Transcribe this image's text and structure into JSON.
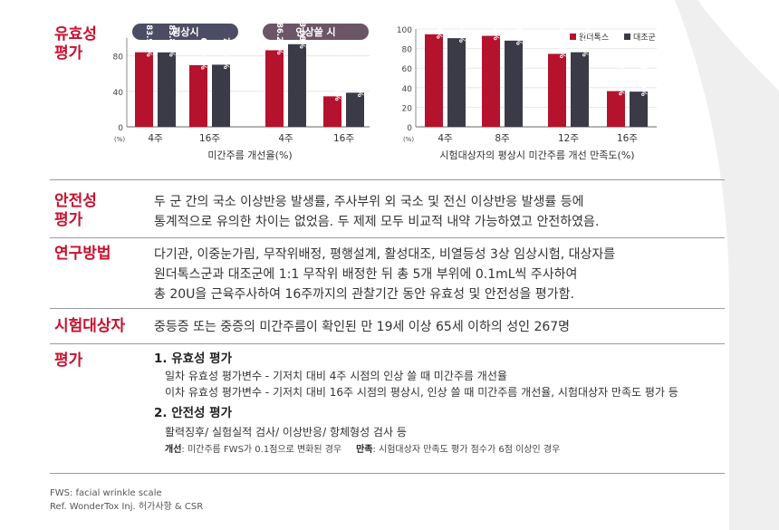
{
  "colors": {
    "accent": "#c8102e",
    "bar_red": "#b5122e",
    "bar_dark": "#3b3b48",
    "pill_dark": "#4a4d63",
    "pill_purple": "#6b5566",
    "bg_shape": "#f0eff0"
  },
  "efficacy": {
    "label_lines": [
      "유효성",
      "평가"
    ]
  },
  "chart1": {
    "pills": [
      "평상시",
      "인상쓸 시"
    ],
    "y_ticks": [
      "80",
      "40",
      "0"
    ],
    "unit": "(%)",
    "xlabel": "미간주름 개선율(%)"
  },
  "chart2": {
    "y_ticks": [
      "100",
      "80",
      "60",
      "40",
      "20",
      "0"
    ],
    "unit": "(%)",
    "xlabel": "시험대상자의 평상시 미간주름 개선 만족도(%)",
    "legend": [
      "원더톡스",
      "대조군"
    ]
  },
  "chart_data": [
    {
      "type": "bar",
      "title": "",
      "xlabel": "미간주름 개선율(%)",
      "ylabel": "",
      "ylim": [
        0,
        100
      ],
      "groups": [
        "평상시",
        "평상시",
        "인상쓸 시",
        "인상쓸 시"
      ],
      "categories": [
        "4주",
        "16주",
        "4주",
        "16주"
      ],
      "series": [
        {
          "name": "원더톡스",
          "values": [
            83.97,
            69.47,
            86.26,
            34.35
          ],
          "labels": [
            "83.97%",
            "69.47%",
            "86.26%",
            "34.35%"
          ]
        },
        {
          "name": "대조군",
          "values": [
            83.85,
            70.0,
            93.08,
            38.46
          ],
          "labels": [
            "83.85%",
            "70.00%",
            "93.08%",
            "38.46%"
          ]
        }
      ]
    },
    {
      "type": "bar",
      "title": "",
      "xlabel": "시험대상자의 평상시 미간주름 개선 만족도(%)",
      "ylabel": "",
      "ylim": [
        0,
        100
      ],
      "categories": [
        "4주",
        "8주",
        "12주",
        "16주"
      ],
      "legend_position": "top-right",
      "series": [
        {
          "name": "원더톡스",
          "values": [
            94.57,
            93.02,
            74.6,
            36.51
          ],
          "labels": [
            "94.57%",
            "93.02%",
            "74.60%",
            "36.51%"
          ]
        },
        {
          "name": "대조군",
          "values": [
            90.63,
            88.1,
            76.23,
            36.0
          ],
          "labels": [
            "90.63%",
            "88.10%",
            "76.23%",
            "36.00%"
          ]
        }
      ]
    }
  ],
  "safety": {
    "label_lines": [
      "안전성",
      "평가"
    ],
    "lines": [
      "두 군 간의 국소 이상반응 발생률, 주사부위 외 국소 및 전신 이상반응 발생률 등에",
      "통계적으로 유의한 차이는 없었음. 두 제제 모두 비교적 내약 가능하였고 안전하였음."
    ]
  },
  "method": {
    "label": "연구방법",
    "lines": [
      "다기관, 이중눈가림, 무작위배정, 평행설계, 활성대조, 비열등성 3상 임상시험, 대상자를",
      "원더톡스군과 대조군에 1:1 무작위 배정한 뒤 총 5개 부위에 0.1mL씩 주사하여",
      "총 20U을 근육주사하여 16주까지의 관찰기간 동안 유효성 및 안전성을 평가함."
    ]
  },
  "subjects": {
    "label": "시험대상자",
    "text": "중등증 또는 중증의 미간주름이 확인된 만 19세 이상 65세 이하의 성인 267명"
  },
  "evaluation": {
    "label": "평가",
    "h1": "1. 유효성 평가",
    "h1_lines": [
      "일차 유효성 평가변수 - 기저치 대비 4주 시점의 인상 쓸 때 미간주름 개선율",
      "이차 유효성 평가변수 - 기저치 대비 16주 시점의 평상시, 인상 쓸 때 미간주름 개선율, 시험대상자 만족도 평가 등"
    ],
    "h2": "2. 안전성 평가",
    "h2_line": "활력징후/ 실험실적 검사/ 이상반응/ 항체형성 검사 등",
    "note1_key": "개선",
    "note1_text": ": 미간주름 FWS가 0.1점으로 변화된 경우",
    "note2_key": "만족",
    "note2_text": ": 시험대상자 만족도 평가 점수가 6점 이상인 경우"
  },
  "footer": {
    "line1": "FWS: facial wrinkle scale",
    "line2": "Ref. WonderTox Inj. 허가사항 & CSR"
  }
}
